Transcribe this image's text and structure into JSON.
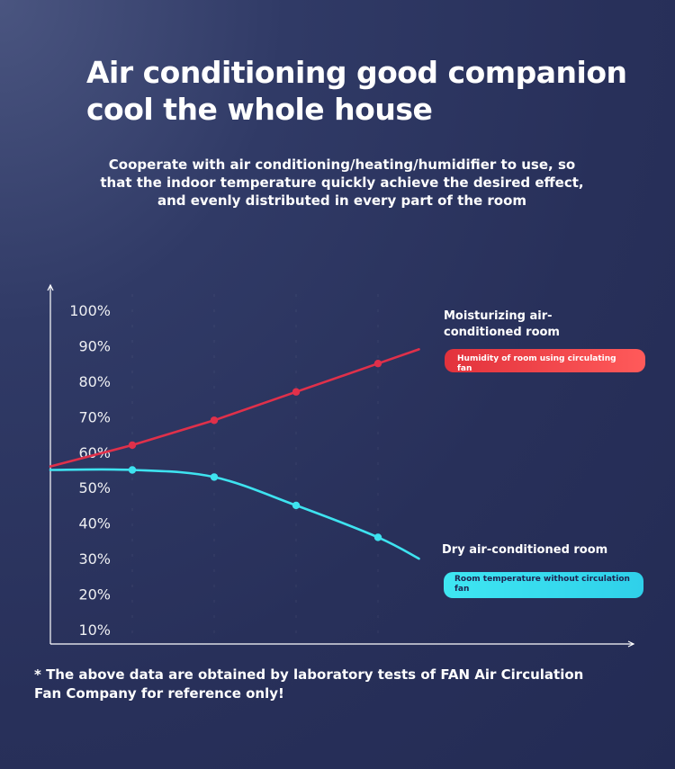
{
  "title": "Air conditioning good companion cool the whole house",
  "subtitle": "Cooperate with air conditioning/heating/humidifier to use, so that the indoor temperature quickly achieve the desired effect, and evenly distributed in every part of the room",
  "footnote": "* The above data are obtained by laboratory tests of FAN Air Circulation Fan Company for reference only!",
  "colors": {
    "humid_line": "#e0304a",
    "dry_line": "#3ee3f0",
    "axis": "#ffffff"
  },
  "chart_data": {
    "type": "line",
    "title": "",
    "xlabel": "",
    "ylabel": "",
    "ylim": [
      5,
      105
    ],
    "y_ticks": [
      "10%",
      "20%",
      "30%",
      "40%",
      "50%",
      "60%",
      "70%",
      "80%",
      "90%",
      "100%"
    ],
    "y_tick_values": [
      10,
      20,
      30,
      40,
      50,
      60,
      70,
      80,
      90,
      100
    ],
    "x": [
      0,
      1,
      2,
      3,
      4,
      4.5
    ],
    "grid": false,
    "series": [
      {
        "name": "Moisturizing air-conditioned room",
        "caption": "Humidity of room using circulating fan",
        "values": [
          56,
          62,
          69,
          77,
          85,
          89
        ],
        "marker_indices": [
          1,
          2,
          3,
          4
        ]
      },
      {
        "name": "Dry air-conditioned room",
        "caption": "Room temperature without circulation fan",
        "values": [
          55,
          55,
          53,
          45,
          36,
          30
        ],
        "marker_indices": [
          1,
          2,
          3,
          4
        ]
      }
    ]
  }
}
